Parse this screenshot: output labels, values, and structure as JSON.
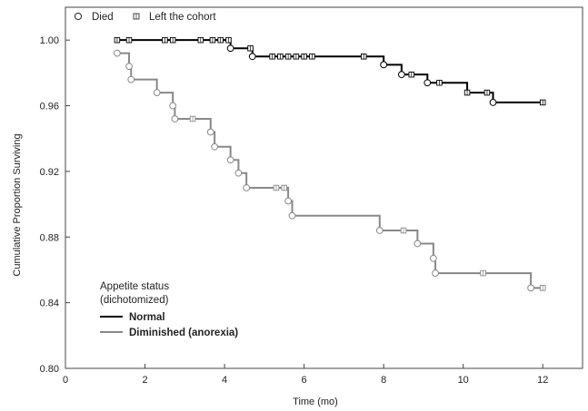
{
  "chart_data": {
    "type": "line",
    "xlabel": "Time (mo)",
    "ylabel": "Cumulative Proportion Surviving",
    "xlim": [
      0,
      13
    ],
    "ylim": [
      0.8,
      1.02
    ],
    "xticks": [
      0,
      2,
      4,
      6,
      8,
      10,
      12
    ],
    "yticks": [
      0.8,
      0.84,
      0.88,
      0.92,
      0.96,
      1.0
    ],
    "xtick_labels": [
      "0",
      "2",
      "4",
      "6",
      "8",
      "10",
      "12"
    ],
    "ytick_labels": [
      "0.80",
      "0.84",
      "0.88",
      "0.92",
      "0.96",
      "1.00"
    ],
    "grid": false,
    "marker_legend": {
      "died_label": "Died",
      "censored_label": "Left the cohort"
    },
    "legend": {
      "title_line1": "Appetite status",
      "title_line2": "(dichotomized)",
      "placement": "bottom-left"
    },
    "series": [
      {
        "name": "Normal",
        "color": "#000000",
        "steps": [
          [
            1.3,
            1.0
          ],
          [
            4.15,
            0.995
          ],
          [
            4.7,
            0.99
          ],
          [
            8.0,
            0.985
          ],
          [
            8.45,
            0.979
          ],
          [
            9.1,
            0.974
          ],
          [
            10.1,
            0.968
          ],
          [
            10.75,
            0.962
          ],
          [
            12.0,
            0.962
          ]
        ],
        "deaths": [
          [
            4.15,
            0.995
          ],
          [
            4.7,
            0.99
          ],
          [
            8.0,
            0.985
          ],
          [
            8.45,
            0.979
          ],
          [
            9.1,
            0.974
          ],
          [
            10.75,
            0.962
          ]
        ],
        "censored": [
          [
            1.3,
            1.0
          ],
          [
            1.6,
            1.0
          ],
          [
            2.5,
            1.0
          ],
          [
            2.7,
            1.0
          ],
          [
            3.4,
            1.0
          ],
          [
            3.7,
            1.0
          ],
          [
            3.9,
            1.0
          ],
          [
            4.1,
            1.0
          ],
          [
            4.65,
            0.995
          ],
          [
            5.2,
            0.99
          ],
          [
            5.4,
            0.99
          ],
          [
            5.6,
            0.99
          ],
          [
            5.8,
            0.99
          ],
          [
            6.0,
            0.99
          ],
          [
            6.2,
            0.99
          ],
          [
            7.5,
            0.99
          ],
          [
            8.7,
            0.979
          ],
          [
            9.4,
            0.974
          ],
          [
            10.1,
            0.968
          ],
          [
            10.6,
            0.968
          ],
          [
            12.0,
            0.962
          ]
        ]
      },
      {
        "name": "Diminished (anorexia)",
        "color": "#888888",
        "steps": [
          [
            1.3,
            0.992
          ],
          [
            1.6,
            0.984
          ],
          [
            1.65,
            0.976
          ],
          [
            2.3,
            0.968
          ],
          [
            2.7,
            0.96
          ],
          [
            2.75,
            0.952
          ],
          [
            3.65,
            0.944
          ],
          [
            3.75,
            0.935
          ],
          [
            4.15,
            0.927
          ],
          [
            4.35,
            0.919
          ],
          [
            4.55,
            0.91
          ],
          [
            5.6,
            0.902
          ],
          [
            5.7,
            0.893
          ],
          [
            7.9,
            0.884
          ],
          [
            8.85,
            0.876
          ],
          [
            9.25,
            0.867
          ],
          [
            9.3,
            0.858
          ],
          [
            11.7,
            0.849
          ],
          [
            12.0,
            0.849
          ]
        ],
        "deaths": [
          [
            1.3,
            0.992
          ],
          [
            1.6,
            0.984
          ],
          [
            1.65,
            0.976
          ],
          [
            2.3,
            0.968
          ],
          [
            2.7,
            0.96
          ],
          [
            2.75,
            0.952
          ],
          [
            3.65,
            0.944
          ],
          [
            3.75,
            0.935
          ],
          [
            4.15,
            0.927
          ],
          [
            4.35,
            0.919
          ],
          [
            4.55,
            0.91
          ],
          [
            5.6,
            0.902
          ],
          [
            5.7,
            0.893
          ],
          [
            7.9,
            0.884
          ],
          [
            8.85,
            0.876
          ],
          [
            9.25,
            0.867
          ],
          [
            9.3,
            0.858
          ],
          [
            11.7,
            0.849
          ]
        ],
        "censored": [
          [
            3.2,
            0.952
          ],
          [
            5.3,
            0.91
          ],
          [
            5.5,
            0.91
          ],
          [
            8.5,
            0.884
          ],
          [
            10.5,
            0.858
          ],
          [
            12.0,
            0.849
          ]
        ]
      }
    ]
  }
}
